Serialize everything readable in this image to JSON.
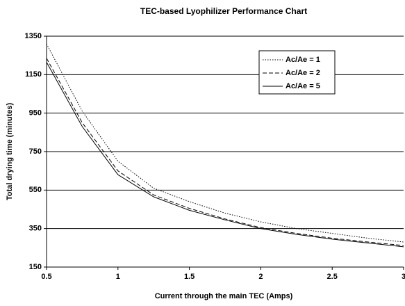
{
  "chart_data": {
    "type": "line",
    "title": "TEC-based Lyophilizer Performance Chart",
    "x_label": "Current through the main TEC (Amps)",
    "y_label": "Total drying time (minutes)",
    "x": [
      0.5,
      0.75,
      1.0,
      1.25,
      1.5,
      1.75,
      2.0,
      2.25,
      2.5,
      2.75,
      3.0
    ],
    "series": [
      {
        "name": "Ac/Ae = 1",
        "color": "#000000",
        "style": "dotted",
        "values": [
          1310,
          960,
          700,
          560,
          490,
          430,
          385,
          350,
          325,
          300,
          280
        ]
      },
      {
        "name": "Ac/Ae = 2",
        "color": "#000000",
        "style": "dashed",
        "values": [
          1235,
          900,
          650,
          525,
          455,
          400,
          355,
          325,
          300,
          280,
          262
        ]
      },
      {
        "name": "Ac/Ae = 5",
        "color": "#000000",
        "style": "solid",
        "values": [
          1215,
          880,
          630,
          515,
          445,
          395,
          350,
          320,
          295,
          275,
          255
        ]
      }
    ],
    "xlim": [
      0.5,
      3
    ],
    "xticks": [
      0.5,
      1,
      1.5,
      2,
      2.5,
      3
    ],
    "ylim": [
      150,
      1350
    ],
    "yticks": [
      150,
      350,
      550,
      750,
      950,
      1150,
      1350
    ],
    "grid": true,
    "legend": "upper right"
  }
}
